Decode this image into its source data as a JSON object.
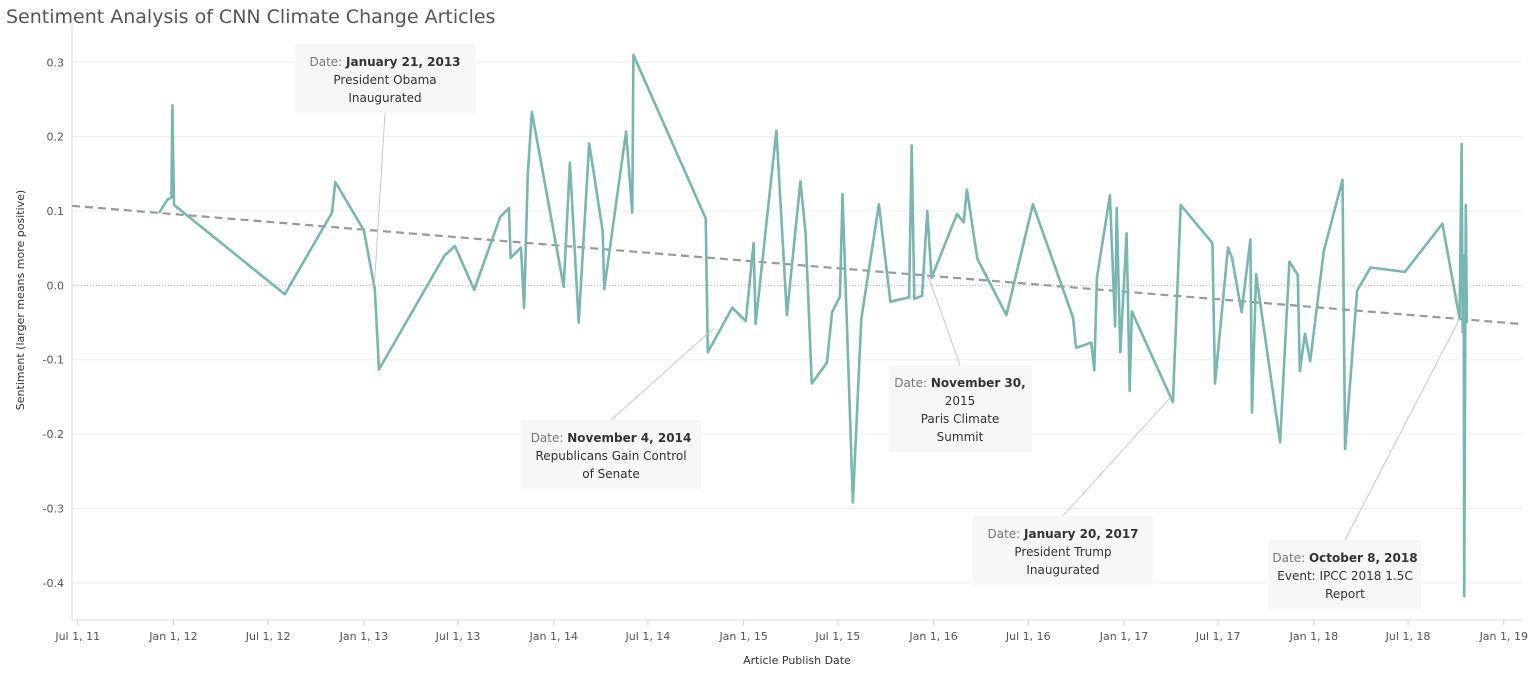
{
  "chart_data": {
    "type": "line",
    "title": "Sentiment Analysis of CNN Climate Change Articles",
    "xlabel": "Article Publish Date",
    "ylabel": "Sentiment (larger means more positive)",
    "xlim": [
      "2011-06-20",
      "2019-02-05"
    ],
    "ylim": [
      -0.45,
      0.33
    ],
    "x_ticks": [
      {
        "date": "2011-07-01",
        "label": "Jul 1, 11"
      },
      {
        "date": "2012-01-01",
        "label": "Jan 1, 12"
      },
      {
        "date": "2012-07-01",
        "label": "Jul 1, 12"
      },
      {
        "date": "2013-01-01",
        "label": "Jan 1, 13"
      },
      {
        "date": "2013-07-01",
        "label": "Jul 1, 13"
      },
      {
        "date": "2014-01-01",
        "label": "Jan 1, 14"
      },
      {
        "date": "2014-07-01",
        "label": "Jul 1, 14"
      },
      {
        "date": "2015-01-01",
        "label": "Jan 1, 15"
      },
      {
        "date": "2015-07-01",
        "label": "Jul 1, 15"
      },
      {
        "date": "2016-01-01",
        "label": "Jan 1, 16"
      },
      {
        "date": "2016-07-01",
        "label": "Jul 1, 16"
      },
      {
        "date": "2017-01-01",
        "label": "Jan 1, 17"
      },
      {
        "date": "2017-07-01",
        "label": "Jul 1, 17"
      },
      {
        "date": "2018-01-01",
        "label": "Jan 1, 18"
      },
      {
        "date": "2018-07-01",
        "label": "Jul 1, 18"
      },
      {
        "date": "2019-01-01",
        "label": "Jan 1, 19"
      }
    ],
    "y_ticks": [
      {
        "value": 0.3,
        "label": "0.3"
      },
      {
        "value": 0.2,
        "label": "0.2"
      },
      {
        "value": 0.1,
        "label": "0.1"
      },
      {
        "value": 0.0,
        "label": "0.0"
      },
      {
        "value": -0.1,
        "label": "-0.1"
      },
      {
        "value": -0.2,
        "label": "-0.2"
      },
      {
        "value": -0.3,
        "label": "-0.3"
      },
      {
        "value": -0.4,
        "label": "-0.4"
      }
    ],
    "grid": true,
    "colors": {
      "line": "#76b7b2",
      "trend": "#999999",
      "zero_line": "#bbbbbb",
      "grid": "#eeeeee"
    },
    "series": [
      {
        "values": [
          {
            "x": "2011-12-05",
            "y": 0.098
          },
          {
            "x": "2011-12-20",
            "y": 0.115
          },
          {
            "x": "2011-12-28",
            "y": 0.118
          },
          {
            "x": "2011-12-30",
            "y": 0.242
          },
          {
            "x": "2012-01-02",
            "y": 0.108
          },
          {
            "x": "2012-01-10",
            "y": 0.104
          },
          {
            "x": "2012-08-02",
            "y": -0.012
          },
          {
            "x": "2012-11-01",
            "y": 0.098
          },
          {
            "x": "2012-11-07",
            "y": 0.139
          },
          {
            "x": "2013-01-01",
            "y": 0.074
          },
          {
            "x": "2013-01-22",
            "y": -0.005
          },
          {
            "x": "2013-01-30",
            "y": -0.113
          },
          {
            "x": "2013-06-05",
            "y": 0.04
          },
          {
            "x": "2013-06-25",
            "y": 0.053
          },
          {
            "x": "2013-08-01",
            "y": -0.006
          },
          {
            "x": "2013-09-20",
            "y": 0.092
          },
          {
            "x": "2013-10-07",
            "y": 0.104
          },
          {
            "x": "2013-10-10",
            "y": 0.037
          },
          {
            "x": "2013-10-30",
            "y": 0.051
          },
          {
            "x": "2013-11-05",
            "y": -0.03
          },
          {
            "x": "2013-11-12",
            "y": 0.15
          },
          {
            "x": "2013-11-20",
            "y": 0.233
          },
          {
            "x": "2014-01-20",
            "y": -0.002
          },
          {
            "x": "2014-02-01",
            "y": 0.165
          },
          {
            "x": "2014-02-18",
            "y": -0.05
          },
          {
            "x": "2014-03-10",
            "y": 0.191
          },
          {
            "x": "2014-04-05",
            "y": 0.073
          },
          {
            "x": "2014-04-08",
            "y": -0.005
          },
          {
            "x": "2014-05-20",
            "y": 0.207
          },
          {
            "x": "2014-06-01",
            "y": 0.098
          },
          {
            "x": "2014-06-03",
            "y": 0.31
          },
          {
            "x": "2014-10-20",
            "y": 0.09
          },
          {
            "x": "2014-10-24",
            "y": -0.09
          },
          {
            "x": "2014-12-10",
            "y": -0.03
          },
          {
            "x": "2015-01-05",
            "y": -0.048
          },
          {
            "x": "2015-01-20",
            "y": 0.057
          },
          {
            "x": "2015-01-24",
            "y": -0.052
          },
          {
            "x": "2015-03-05",
            "y": 0.208
          },
          {
            "x": "2015-03-25",
            "y": -0.04
          },
          {
            "x": "2015-04-20",
            "y": 0.14
          },
          {
            "x": "2015-04-30",
            "y": 0.07
          },
          {
            "x": "2015-05-12",
            "y": -0.132
          },
          {
            "x": "2015-06-10",
            "y": -0.104
          },
          {
            "x": "2015-06-20",
            "y": -0.036
          },
          {
            "x": "2015-07-05",
            "y": -0.015
          },
          {
            "x": "2015-07-10",
            "y": 0.123
          },
          {
            "x": "2015-07-30",
            "y": -0.292
          },
          {
            "x": "2015-08-15",
            "y": -0.045
          },
          {
            "x": "2015-09-18",
            "y": 0.109
          },
          {
            "x": "2015-10-10",
            "y": -0.022
          },
          {
            "x": "2015-11-15",
            "y": -0.016
          },
          {
            "x": "2015-11-20",
            "y": 0.188
          },
          {
            "x": "2015-11-25",
            "y": -0.018
          },
          {
            "x": "2015-12-10",
            "y": -0.014
          },
          {
            "x": "2015-12-20",
            "y": 0.1
          },
          {
            "x": "2015-12-28",
            "y": 0.01
          },
          {
            "x": "2016-02-15",
            "y": 0.096
          },
          {
            "x": "2016-02-28",
            "y": 0.085
          },
          {
            "x": "2016-03-05",
            "y": 0.129
          },
          {
            "x": "2016-03-25",
            "y": 0.036
          },
          {
            "x": "2016-05-20",
            "y": -0.04
          },
          {
            "x": "2016-07-10",
            "y": 0.109
          },
          {
            "x": "2016-09-25",
            "y": -0.043
          },
          {
            "x": "2016-10-01",
            "y": -0.084
          },
          {
            "x": "2016-10-30",
            "y": -0.077
          },
          {
            "x": "2016-11-05",
            "y": -0.114
          },
          {
            "x": "2016-11-10",
            "y": 0.01
          },
          {
            "x": "2016-12-05",
            "y": 0.121
          },
          {
            "x": "2016-12-15",
            "y": -0.055
          },
          {
            "x": "2016-12-18",
            "y": 0.104
          },
          {
            "x": "2016-12-25",
            "y": -0.09
          },
          {
            "x": "2017-01-06",
            "y": 0.07
          },
          {
            "x": "2017-01-12",
            "y": -0.142
          },
          {
            "x": "2017-01-16",
            "y": -0.035
          },
          {
            "x": "2017-04-05",
            "y": -0.157
          },
          {
            "x": "2017-04-20",
            "y": 0.108
          },
          {
            "x": "2017-06-20",
            "y": 0.057
          },
          {
            "x": "2017-06-25",
            "y": -0.132
          },
          {
            "x": "2017-07-20",
            "y": 0.051
          },
          {
            "x": "2017-07-28",
            "y": 0.036
          },
          {
            "x": "2017-08-15",
            "y": -0.036
          },
          {
            "x": "2017-09-01",
            "y": 0.062
          },
          {
            "x": "2017-09-04",
            "y": -0.171
          },
          {
            "x": "2017-09-12",
            "y": 0.015
          },
          {
            "x": "2017-10-28",
            "y": -0.211
          },
          {
            "x": "2017-11-15",
            "y": 0.032
          },
          {
            "x": "2017-12-01",
            "y": 0.014
          },
          {
            "x": "2017-12-05",
            "y": -0.115
          },
          {
            "x": "2017-12-15",
            "y": -0.065
          },
          {
            "x": "2017-12-25",
            "y": -0.102
          },
          {
            "x": "2018-01-20",
            "y": 0.046
          },
          {
            "x": "2018-02-25",
            "y": 0.142
          },
          {
            "x": "2018-03-02",
            "y": -0.22
          },
          {
            "x": "2018-03-25",
            "y": -0.007
          },
          {
            "x": "2018-04-20",
            "y": 0.024
          },
          {
            "x": "2018-06-25",
            "y": 0.018
          },
          {
            "x": "2018-09-05",
            "y": 0.083
          },
          {
            "x": "2018-10-08",
            "y": -0.045
          },
          {
            "x": "2018-10-12",
            "y": 0.19
          },
          {
            "x": "2018-10-14",
            "y": -0.063
          },
          {
            "x": "2018-10-16",
            "y": 0.04
          },
          {
            "x": "2018-10-17",
            "y": -0.418
          },
          {
            "x": "2018-10-20",
            "y": 0.108
          },
          {
            "x": "2018-10-22",
            "y": -0.05
          }
        ]
      }
    ],
    "trend_line": [
      {
        "x": "2011-06-20",
        "y": 0.107
      },
      {
        "x": "2019-02-05",
        "y": -0.052
      }
    ],
    "annotations": [
      {
        "date_label": "Date:",
        "date_value": "January 21, 2013",
        "lines": [
          "President Obama",
          "Inaugurated"
        ],
        "point": {
          "x": "2013-01-21",
          "y": -0.002
        }
      },
      {
        "date_label": "Date:",
        "date_value": "November 4, 2014",
        "lines": [
          "Republicans Gain Control",
          "of Senate"
        ],
        "point": {
          "x": "2014-11-04",
          "y": -0.058
        }
      },
      {
        "date_label": "Date:",
        "date_value": "November 30,",
        "lines": [
          "2015",
          "Paris Climate",
          "Summit"
        ],
        "point": {
          "x": "2015-12-22",
          "y": 0.012
        }
      },
      {
        "date_label": "Date:",
        "date_value": "January 20, 2017",
        "lines": [
          "President Trump",
          "Inaugurated"
        ],
        "point": {
          "x": "2017-04-01",
          "y": -0.15
        }
      },
      {
        "date_label": "Date:",
        "date_value": "October 8, 2018",
        "lines": [
          "Event: IPCC 2018 1.5C",
          "Report"
        ],
        "point": {
          "x": "2018-10-08",
          "y": -0.045
        }
      }
    ]
  }
}
